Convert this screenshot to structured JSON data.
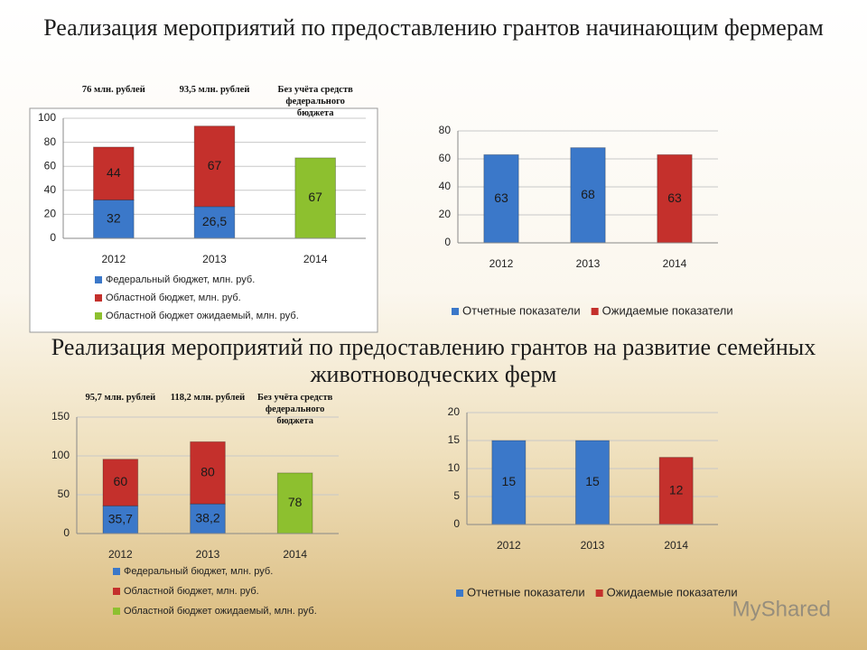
{
  "titles": [
    "Реализация мероприятий по предоставлению грантов начинающим фермерам",
    "Реализация мероприятий по предоставлению грантов на развитие семейных животноводческих ферм"
  ],
  "watermark": "MyShared",
  "chart_data": [
    {
      "type": "stacked_bar",
      "categories": [
        "2012",
        "2013",
        "2014"
      ],
      "series": [
        {
          "name": "Федеральный бюджет, млн. руб.",
          "color": "#3b78c9",
          "values": [
            32,
            26.5,
            null
          ],
          "value_labels": [
            "32",
            "26,5",
            null
          ]
        },
        {
          "name": "Областной бюджет, млн. руб.",
          "color": "#c4302c",
          "values": [
            44,
            67,
            null
          ]
        },
        {
          "name": "Областной бюджет ожидаемый, млн. руб.",
          "color": "#8dc02f",
          "values": [
            null,
            null,
            67
          ]
        }
      ],
      "annotations": [
        "76 млн. рублей",
        "93,5 млн. рублей",
        "Без учёта средств федерального бюджета"
      ],
      "ylim": [
        0,
        100
      ],
      "yticks": [
        0,
        20,
        40,
        60,
        80,
        100
      ],
      "grid": true,
      "legend": "bottom"
    },
    {
      "type": "bar",
      "categories": [
        "2012",
        "2013",
        "2014"
      ],
      "series": [
        {
          "name": "Отчетные показатели",
          "color": "#3b78c9",
          "values": [
            63,
            68,
            null
          ]
        },
        {
          "name": "Ожидаемые показатели",
          "color": "#c4302c",
          "values": [
            null,
            null,
            63
          ]
        }
      ],
      "ylim": [
        0,
        80
      ],
      "yticks": [
        0,
        20,
        40,
        60,
        80
      ],
      "grid": true,
      "legend": "bottom"
    },
    {
      "type": "stacked_bar",
      "categories": [
        "2012",
        "2013",
        "2014"
      ],
      "series": [
        {
          "name": "Федеральный бюджет, млн. руб.",
          "color": "#3b78c9",
          "values": [
            35.7,
            38.2,
            null
          ],
          "value_labels": [
            "35,7",
            "38,2",
            null
          ]
        },
        {
          "name": "Областной бюджет, млн. руб.",
          "color": "#c4302c",
          "values": [
            60,
            80,
            null
          ]
        },
        {
          "name": "Областной бюджет ожидаемый, млн. руб.",
          "color": "#8dc02f",
          "values": [
            null,
            null,
            78
          ]
        }
      ],
      "annotations": [
        "95,7 млн. рублей",
        "118,2 млн. рублей",
        "Без учёта средств федерального бюджета"
      ],
      "ylim": [
        0,
        150
      ],
      "yticks": [
        0,
        50,
        100,
        150
      ],
      "grid": true,
      "legend": "bottom"
    },
    {
      "type": "bar",
      "categories": [
        "2012",
        "2013",
        "2014"
      ],
      "series": [
        {
          "name": "Отчетные показатели",
          "color": "#3b78c9",
          "values": [
            15,
            15,
            null
          ]
        },
        {
          "name": "Ожидаемые показатели",
          "color": "#c4302c",
          "values": [
            null,
            null,
            12
          ]
        }
      ],
      "ylim": [
        0,
        20
      ],
      "yticks": [
        0,
        5,
        10,
        15,
        20
      ],
      "grid": true,
      "legend": "bottom"
    }
  ]
}
